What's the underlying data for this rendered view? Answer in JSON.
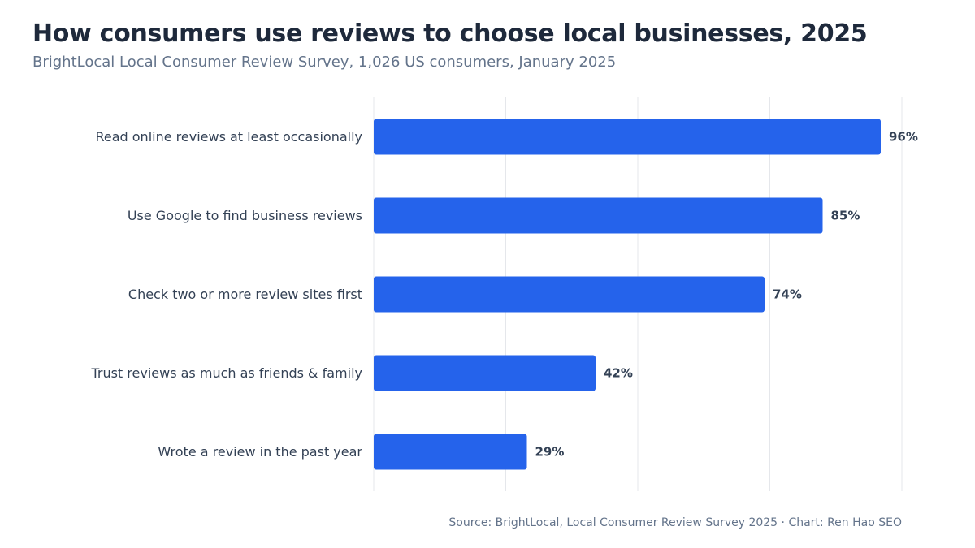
{
  "title": "How consumers use reviews to choose local businesses, 2025",
  "subtitle": "BrightLocal Local Consumer Review Survey, 1,026 US consumers, January 2025",
  "source": "Source: BrightLocal, Local Consumer Review Survey 2025 · Chart: Ren Hao SEO",
  "colors": {
    "bar": "#2563eb",
    "grid": "#e5e7eb"
  },
  "chart_data": {
    "type": "bar",
    "orientation": "horizontal",
    "categories": [
      "Read online reviews at least occasionally",
      "Use Google to find business reviews",
      "Check two or more review sites first",
      "Trust reviews as much as friends & family",
      "Wrote a review in the past year"
    ],
    "values": [
      96,
      85,
      74,
      42,
      29
    ],
    "value_labels": [
      "96%",
      "85%",
      "74%",
      "42%",
      "29%"
    ],
    "xlim": [
      0,
      100
    ],
    "grid": true,
    "legend": "none"
  }
}
